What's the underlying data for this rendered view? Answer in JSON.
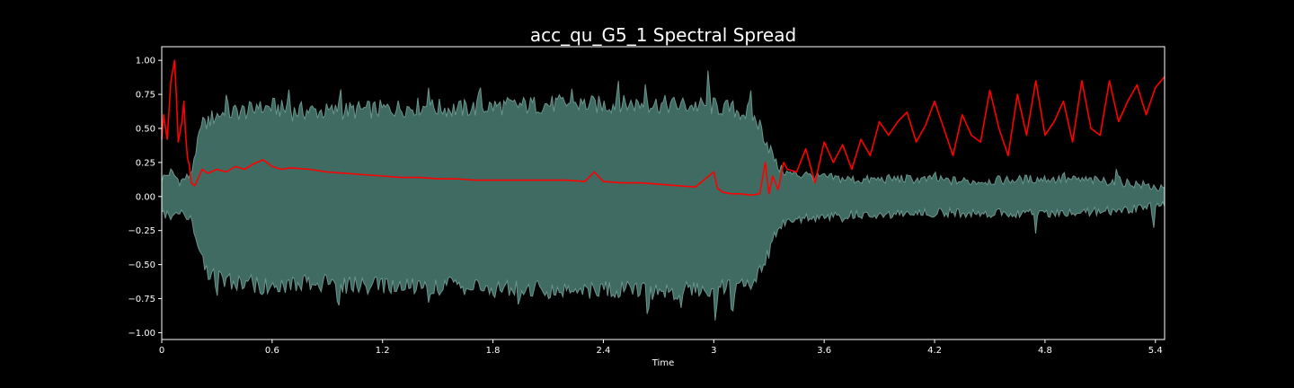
{
  "chart_data": {
    "type": "area",
    "title": "acc_qu_G5_1 Spectral Spread",
    "xlabel": "Time",
    "ylabel": "",
    "xlim": [
      0,
      5.45
    ],
    "ylim": [
      -1.05,
      1.1
    ],
    "x_ticks": [
      0,
      0.6,
      1.2,
      1.8,
      2.4,
      3.0,
      3.6,
      4.2,
      4.8,
      5.4
    ],
    "x_tick_labels": [
      "0",
      "0.6",
      "1.2",
      "1.8",
      "2.4",
      "3",
      "3.6",
      "4.2",
      "4.8",
      "5.4"
    ],
    "y_ticks": [
      1.0,
      0.75,
      0.5,
      0.25,
      0.0,
      -0.25,
      -0.5,
      -0.75,
      -1.0
    ],
    "y_tick_labels": [
      "1.00",
      "0.75",
      "0.50",
      "0.25",
      "0.00",
      "−0.25",
      "−0.50",
      "−0.75",
      "−1.00"
    ],
    "grid": false,
    "background": "#000000",
    "series": [
      {
        "kind": "waveform_envelope",
        "color": "#3f6b62",
        "edge_color": "#6a958c",
        "x": [
          0.0,
          0.05,
          0.1,
          0.15,
          0.18,
          0.2,
          0.25,
          0.3,
          0.4,
          0.5,
          0.6,
          0.7,
          0.8,
          0.9,
          1.0,
          1.2,
          1.4,
          1.6,
          1.8,
          2.0,
          2.2,
          2.4,
          2.6,
          2.8,
          3.0,
          3.1,
          3.2,
          3.25,
          3.3,
          3.35,
          3.4,
          3.5,
          3.6,
          3.8,
          4.0,
          4.2,
          4.4,
          4.6,
          4.8,
          5.0,
          5.2,
          5.4,
          5.45
        ],
        "upper": [
          0.12,
          0.17,
          0.1,
          0.14,
          0.25,
          0.4,
          0.53,
          0.58,
          0.6,
          0.61,
          0.64,
          0.6,
          0.61,
          0.6,
          0.61,
          0.62,
          0.64,
          0.62,
          0.64,
          0.65,
          0.66,
          0.65,
          0.66,
          0.65,
          0.64,
          0.62,
          0.58,
          0.5,
          0.35,
          0.2,
          0.16,
          0.14,
          0.13,
          0.11,
          0.12,
          0.11,
          0.1,
          0.11,
          0.12,
          0.11,
          0.1,
          0.06,
          0.03
        ],
        "lower": [
          -0.1,
          -0.14,
          -0.12,
          -0.14,
          -0.26,
          -0.42,
          -0.55,
          -0.58,
          -0.61,
          -0.62,
          -0.64,
          -0.61,
          -0.62,
          -0.62,
          -0.63,
          -0.64,
          -0.63,
          -0.64,
          -0.65,
          -0.66,
          -0.67,
          -0.67,
          -0.67,
          -0.67,
          -0.66,
          -0.64,
          -0.6,
          -0.52,
          -0.36,
          -0.22,
          -0.17,
          -0.15,
          -0.14,
          -0.12,
          -0.12,
          -0.11,
          -0.11,
          -0.11,
          -0.11,
          -0.1,
          -0.09,
          -0.06,
          -0.03
        ],
        "peaks": [
          [
            0.22,
            0.62
          ],
          [
            0.35,
            0.75
          ],
          [
            0.52,
            0.7
          ],
          [
            0.69,
            0.8
          ],
          [
            0.97,
            0.84
          ],
          [
            1.45,
            0.8
          ],
          [
            1.73,
            0.84
          ],
          [
            2.23,
            0.8
          ],
          [
            2.48,
            0.88
          ],
          [
            2.63,
            0.86
          ],
          [
            2.97,
            0.96
          ],
          [
            3.2,
            0.8
          ],
          [
            0.3,
            -0.75
          ],
          [
            0.55,
            -0.78
          ],
          [
            0.96,
            -0.85
          ],
          [
            1.45,
            -0.78
          ],
          [
            1.94,
            -0.82
          ],
          [
            2.64,
            -0.92
          ],
          [
            2.82,
            -0.85
          ],
          [
            3.01,
            -0.97
          ],
          [
            3.1,
            -0.92
          ],
          [
            3.3,
            -0.25
          ],
          [
            3.5,
            0.2
          ],
          [
            3.7,
            -0.2
          ],
          [
            4.2,
            0.2
          ],
          [
            4.75,
            -0.28
          ],
          [
            4.9,
            0.19
          ],
          [
            5.19,
            0.22
          ],
          [
            5.39,
            -0.25
          ]
        ]
      },
      {
        "kind": "line",
        "color": "#ff0000",
        "x": [
          0.0,
          0.01,
          0.03,
          0.05,
          0.07,
          0.08,
          0.09,
          0.1,
          0.11,
          0.12,
          0.13,
          0.14,
          0.15,
          0.16,
          0.18,
          0.2,
          0.22,
          0.25,
          0.3,
          0.35,
          0.4,
          0.45,
          0.5,
          0.55,
          0.6,
          0.65,
          0.7,
          0.8,
          0.9,
          1.0,
          1.1,
          1.2,
          1.3,
          1.4,
          1.5,
          1.6,
          1.7,
          1.8,
          1.9,
          2.0,
          2.1,
          2.2,
          2.3,
          2.35,
          2.4,
          2.5,
          2.6,
          2.7,
          2.8,
          2.9,
          3.0,
          3.02,
          3.05,
          3.1,
          3.15,
          3.2,
          3.25,
          3.28,
          3.3,
          3.32,
          3.35,
          3.38,
          3.4,
          3.45,
          3.5,
          3.55,
          3.6,
          3.65,
          3.7,
          3.75,
          3.8,
          3.85,
          3.9,
          3.95,
          4.0,
          4.05,
          4.1,
          4.15,
          4.2,
          4.25,
          4.3,
          4.35,
          4.4,
          4.45,
          4.5,
          4.55,
          4.6,
          4.65,
          4.7,
          4.75,
          4.8,
          4.85,
          4.9,
          4.95,
          5.0,
          5.05,
          5.1,
          5.15,
          5.2,
          5.25,
          5.3,
          5.35,
          5.4,
          5.45
        ],
        "y": [
          0.42,
          0.6,
          0.42,
          0.85,
          1.0,
          0.72,
          0.4,
          0.48,
          0.55,
          0.7,
          0.45,
          0.28,
          0.23,
          0.1,
          0.08,
          0.14,
          0.2,
          0.17,
          0.2,
          0.18,
          0.22,
          0.2,
          0.24,
          0.27,
          0.22,
          0.2,
          0.21,
          0.2,
          0.18,
          0.17,
          0.16,
          0.15,
          0.14,
          0.14,
          0.13,
          0.13,
          0.12,
          0.12,
          0.12,
          0.12,
          0.12,
          0.12,
          0.11,
          0.18,
          0.11,
          0.1,
          0.1,
          0.09,
          0.08,
          0.07,
          0.18,
          0.06,
          0.03,
          0.02,
          0.02,
          0.01,
          0.02,
          0.25,
          0.02,
          0.15,
          0.05,
          0.25,
          0.2,
          0.18,
          0.35,
          0.1,
          0.4,
          0.25,
          0.38,
          0.2,
          0.42,
          0.3,
          0.55,
          0.45,
          0.55,
          0.62,
          0.4,
          0.52,
          0.7,
          0.5,
          0.3,
          0.6,
          0.45,
          0.4,
          0.78,
          0.5,
          0.3,
          0.75,
          0.45,
          0.85,
          0.45,
          0.55,
          0.7,
          0.4,
          0.85,
          0.5,
          0.45,
          0.85,
          0.55,
          0.7,
          0.82,
          0.6,
          0.8,
          0.88
        ]
      }
    ]
  }
}
